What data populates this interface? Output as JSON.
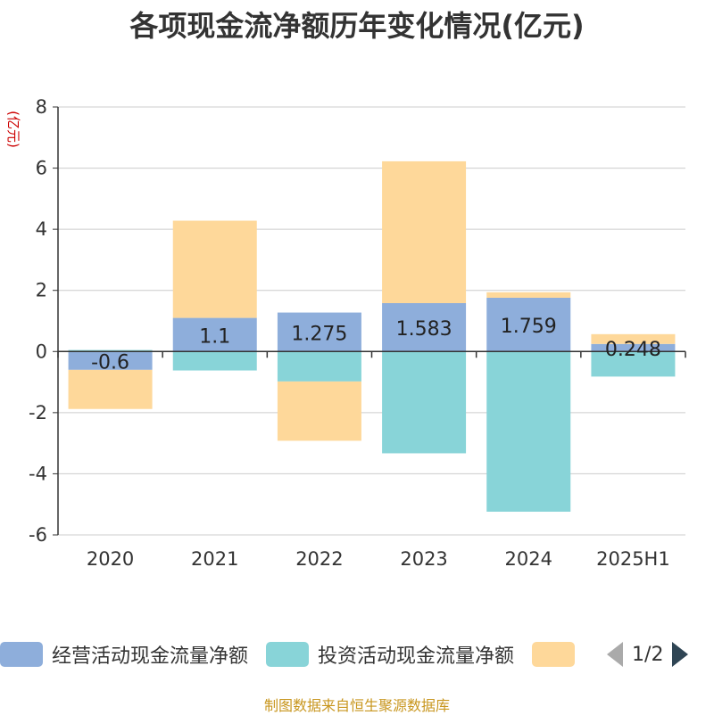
{
  "chart_data": {
    "type": "bar",
    "stacked": true,
    "title": "各项现金流净额历年变化情况(亿元)",
    "ylabel": "(亿元)",
    "ylim": [
      -6,
      8
    ],
    "yticks": [
      -6,
      -4,
      -2,
      0,
      2,
      4,
      6,
      8
    ],
    "categories": [
      "2020",
      "2021",
      "2022",
      "2023",
      "2024",
      "2025H1"
    ],
    "grid": true,
    "series": [
      {
        "name": "经营活动现金流量净额",
        "color": "#8eaedb",
        "values": [
          -0.6,
          1.1,
          1.275,
          1.583,
          1.759,
          0.248
        ],
        "labels": [
          "-0.6",
          "1.1",
          "1.275",
          "1.583",
          "1.759",
          "0.248"
        ]
      },
      {
        "name": "投资活动现金流量净额",
        "color": "#88d4d8",
        "values": [
          0.05,
          -0.62,
          -0.98,
          -3.33,
          -5.24,
          -0.82
        ]
      },
      {
        "name": "",
        "color": "#fed89a",
        "values": [
          -1.28,
          3.18,
          -1.94,
          4.64,
          0.18,
          0.32
        ]
      }
    ],
    "legend_position": "bottom"
  },
  "legend": {
    "page": "1/2"
  },
  "source": "制图数据来自恒生聚源数据库"
}
